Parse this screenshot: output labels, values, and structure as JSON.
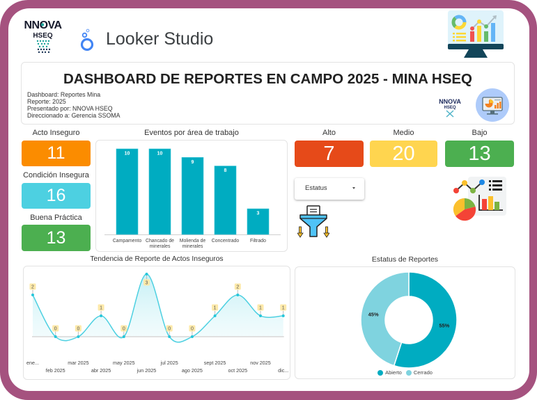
{
  "app": {
    "brand_top": "NNOVA",
    "brand_bottom": "HSEQ",
    "name": "Looker Studio"
  },
  "header": {
    "title": "DASHBOARD DE REPORTES EN CAMPO 2025 - MINA HSEQ",
    "info": [
      "Dashboard: Reportes Mina",
      "Reporte: 2025",
      "Presentado por: NNOVA HSEQ",
      "Direccionado a: Gerencia SSOMA"
    ],
    "logo_top": "NNOVA",
    "logo_bottom": "HSEQ"
  },
  "kpis": {
    "type": [
      {
        "label": "Acto Inseguro",
        "value": "11",
        "color": "#fb8c00"
      },
      {
        "label": "Condición Insegura",
        "value": "16",
        "color": "#4dd0e1"
      },
      {
        "label": "Buena Práctica",
        "value": "13",
        "color": "#4caf50"
      }
    ],
    "risk": [
      {
        "label": "Alto",
        "value": "7",
        "color": "#e64a19"
      },
      {
        "label": "Medio",
        "value": "20",
        "color": "#ffd54f"
      },
      {
        "label": "Bajo",
        "value": "13",
        "color": "#4caf50"
      }
    ]
  },
  "filter": {
    "label": "Estatus"
  },
  "icons": {
    "app_logo": "looker-studio-icon",
    "top_right": "dashboard-monitor-icon",
    "filter": "filter-funnel-icon",
    "analytics": "analytics-charts-icon",
    "header_badge": "presentation-monitor-icon"
  },
  "chart_data": [
    {
      "type": "bar",
      "title": "Eventos por área de trabajo",
      "categories": [
        "Campamento",
        "Chancado de minerales",
        "Molienda de minerales",
        "Concentrado",
        "Filtrado"
      ],
      "values": [
        10,
        10,
        9,
        8,
        3
      ],
      "xlabel": "",
      "ylabel": "",
      "ylim": [
        0,
        10
      ],
      "color": "#00acc1",
      "grid": false
    },
    {
      "type": "line",
      "title": "Tendencia de Reporte de Actos Inseguros",
      "x": [
        "ene...",
        "feb 2025",
        "mar 2025",
        "abr 2025",
        "may 2025",
        "jun 2025",
        "jul 2025",
        "ago 2025",
        "sept 2025",
        "oct 2025",
        "nov 2025",
        "dic..."
      ],
      "values": [
        2,
        0,
        0,
        1,
        0,
        3,
        0,
        0,
        1,
        2,
        1,
        1
      ],
      "ylim": [
        0,
        3
      ],
      "color": "#4dd0e1",
      "smooth": true,
      "area": true
    },
    {
      "type": "pie",
      "title": "Estatus de Reportes",
      "categories": [
        "Abierto",
        "Cerrado"
      ],
      "values": [
        55,
        45
      ],
      "labels": [
        "55%",
        "45%"
      ],
      "colors": [
        "#00acc1",
        "#7fd3df"
      ],
      "donut": true,
      "legend": "bottom"
    }
  ]
}
